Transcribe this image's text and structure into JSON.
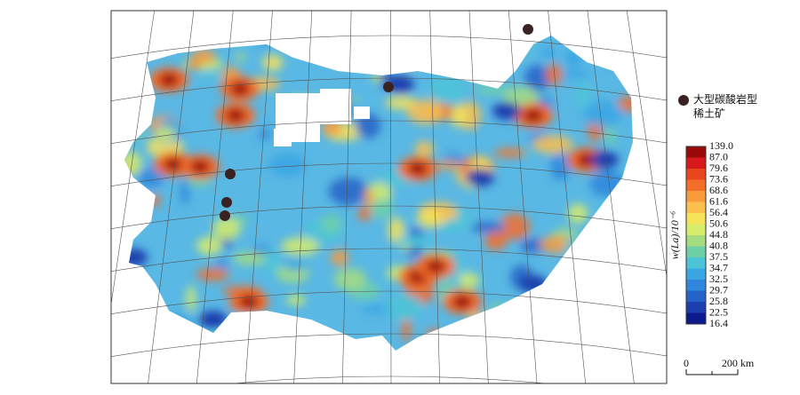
{
  "legend": {
    "deposit_label": [
      "大型碳酸岩型",
      "稀土矿"
    ]
  },
  "color_scale": {
    "title": "w(La)/10⁻⁶",
    "labels": [
      "139.0",
      "87.0",
      "79.6",
      "73.6",
      "68.6",
      "61.6",
      "56.4",
      "50.6",
      "44.8",
      "40.8",
      "37.5",
      "34.7",
      "32.5",
      "29.7",
      "25.8",
      "22.5",
      "16.4"
    ],
    "colors": [
      "#9b0a0a",
      "#d7191c",
      "#e8461c",
      "#f46d2a",
      "#f99a3c",
      "#fdc04e",
      "#f7e35a",
      "#d7ec6a",
      "#a6dc80",
      "#6fd0a8",
      "#4cc4d8",
      "#3aa6e4",
      "#2f86dc",
      "#2563c8",
      "#1b3fae",
      "#0c1a8c"
    ]
  },
  "scale_bar": {
    "start": "0",
    "end": "200 km"
  }
}
